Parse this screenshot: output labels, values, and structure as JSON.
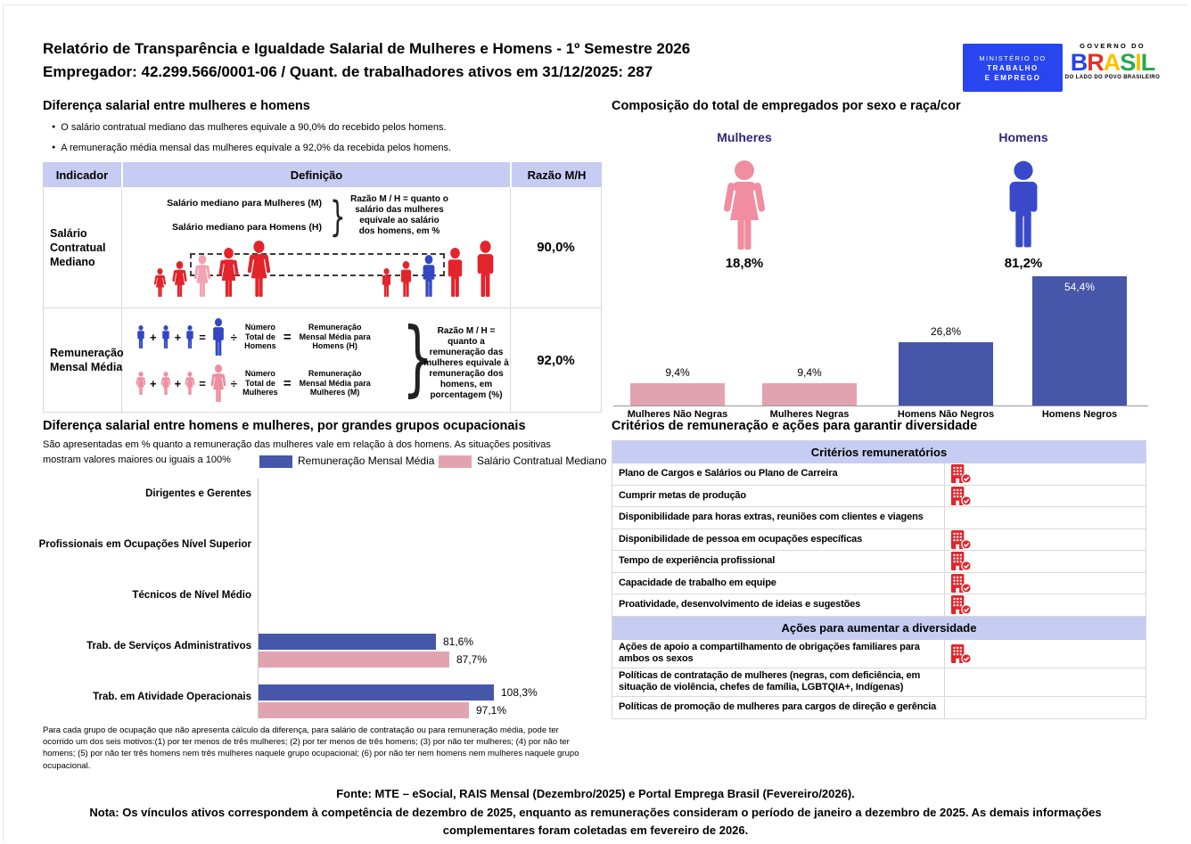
{
  "header": {
    "title_line1": "Relatório de Transparência e Igualdade Salarial de Mulheres e Homens - 1º Semestre 2026",
    "title_line2": "Empregador: 42.299.566/0001-06 / Quant. de trabalhadores ativos em 31/12/2025: 287",
    "ministry_logo": {
      "line1": "MINISTÉRIO DO",
      "line2": "TRABALHO",
      "line3": "E EMPREGO"
    },
    "gov_logo": {
      "top": "GOVERNO DO",
      "brasil_letters": [
        {
          "ch": "B",
          "color": "#2743EA"
        },
        {
          "ch": "R",
          "color": "#E53026"
        },
        {
          "ch": "A",
          "color": "#F8C300"
        },
        {
          "ch": "S",
          "color": "#2BA84E"
        },
        {
          "ch": "I",
          "color": "#F8C300"
        },
        {
          "ch": "L",
          "color": "#2BA84E"
        }
      ],
      "bottom": "DO LADO DO POVO BRASILEIRO"
    }
  },
  "salary_gap": {
    "title": "Diferença salarial entre mulheres e homens",
    "bullets": [
      "O salário contratual mediano das mulheres equivale a 90,0% do recebido pelos homens.",
      "A remuneração média mensal das mulheres equivale a 92,0% da recebida pelos homens."
    ],
    "table_headers": [
      "Indicador",
      "Definição",
      "Razão M/H"
    ],
    "row1": {
      "indicator": "Salário Contratual Mediano",
      "label_women": "Salário mediano para Mulheres (M)",
      "label_men": "Salário mediano para Homens (H)",
      "note": "Razão M / H = quanto o salário das mulheres equivale ao salário dos homens, em %",
      "women_icons": [
        "red",
        "red",
        "pink",
        "red",
        "red"
      ],
      "men_icons": [
        "red",
        "red",
        "blue",
        "red",
        "red"
      ],
      "ratio": "90,0%"
    },
    "row2": {
      "indicator": "Remuneração Mensal Média",
      "men_line": {
        "divisor": "Número Total de Homens",
        "result": "Remuneração Mensal Média para Homens (H)"
      },
      "women_line": {
        "divisor": "Número Total de Mulheres",
        "result": "Remuneração Mensal Média para Mulheres (M)"
      },
      "note": "Razão M / H = quanto a remuneração das mulheres equivale à remuneração dos homens, em porcentagem (%)",
      "ratio": "92,0%"
    }
  },
  "composition": {
    "title": "Composição do total de empregados por sexo e raça/cor",
    "women_label": "Mulheres",
    "women_pct": "18,8%",
    "men_label": "Homens",
    "men_pct": "81,2%"
  },
  "occupational": {
    "title": "Diferença salarial entre homens e mulheres, por grandes grupos ocupacionais",
    "subtitle": "São apresentadas em % quanto a remuneração das mulheres vale em relação à dos homens. As situações positivas mostram valores maiores ou iguais a 100%",
    "footnote": "Para cada grupo de ocupação que não apresenta cálculo da diferença, para salário de contratação ou para remuneração média, pode ter ocorrido um dos seis motivos:(1) por ter menos de três mulheres; (2) por ter menos de três homens; (3) por não ter mulheres; (4) por não ter homens; (5) por não ter três homens nem três mulheres naquele grupo ocupacional; (6) por não ter nem homens nem mulheres naquele grupo ocupacional."
  },
  "criteria": {
    "title": "Critérios de remuneração e ações para garantir diversidade",
    "sections": [
      {
        "header": "Critérios remuneratórios",
        "rows": [
          {
            "label": "Plano de Cargos e Salários ou Plano de Carreira",
            "checked": true
          },
          {
            "label": "Cumprir metas de produção",
            "checked": true
          },
          {
            "label": "Disponibilidade para horas extras, reuniões com clientes e viagens",
            "checked": false
          },
          {
            "label": "Disponibilidade de pessoa em ocupações específicas",
            "checked": true
          },
          {
            "label": "Tempo de experiência profissional",
            "checked": true
          },
          {
            "label": "Capacidade de trabalho em equipe",
            "checked": true
          },
          {
            "label": "Proatividade, desenvolvimento de ideias e sugestões",
            "checked": true
          }
        ]
      },
      {
        "header": "Ações para aumentar a diversidade",
        "rows": [
          {
            "label": "Ações de apoio a compartilhamento de obrigações familiares para ambos os sexos",
            "checked": true
          },
          {
            "label": "Políticas de contratação de mulheres (negras, com deficiência, em situação de violência, chefes de família, LGBTQIA+, Indígenas)",
            "checked": false
          },
          {
            "label": "Políticas de promoção de mulheres para cargos de direção e gerência",
            "checked": false
          }
        ]
      }
    ]
  },
  "footer": {
    "fonte": "Fonte: MTE – eSocial, RAIS Mensal (Dezembro/2025) e Portal Emprega Brasil (Fevereiro/2026).",
    "nota": "Nota: Os vínculos ativos correspondem à competência de dezembro de 2025, enquanto as remunerações consideram o período de janeiro a dezembro de 2025. As demais informações complementares foram coletadas em fevereiro de 2026."
  },
  "chart_data": [
    {
      "id": "composition",
      "type": "bar",
      "title": "Composição do total de empregados por sexo e raça/cor",
      "categories": [
        "Mulheres Não Negras",
        "Mulheres Negras",
        "Homens Não Negros",
        "Homens Negros"
      ],
      "values": [
        9.4,
        9.4,
        26.8,
        54.4
      ],
      "labels": [
        "9,4%",
        "9,4%",
        "26,8%",
        "54,4%"
      ],
      "colors": [
        "#E2A3B1",
        "#E2A3B1",
        "#4656A8",
        "#4656A8"
      ],
      "ylim": [
        0,
        60
      ],
      "legend_position": "none",
      "grid": false
    },
    {
      "id": "occupational",
      "type": "bar-horizontal",
      "title": "Diferença salarial entre homens e mulheres, por grandes grupos ocupacionais",
      "categories": [
        "Dirigentes e Gerentes",
        "Profissionais em Ocupações Nível Superior",
        "Técnicos de Nível Médio",
        "Trab. de Serviços Administrativos",
        "Trab. em Atividade Operacionais"
      ],
      "series": [
        {
          "name": "Remuneração Mensal Média",
          "color": "#4656A8",
          "values": [
            null,
            null,
            null,
            81.6,
            108.3
          ],
          "labels": [
            "",
            "",
            "",
            "81,6%",
            "108,3%"
          ]
        },
        {
          "name": "Salário Contratual Mediano",
          "color": "#E2A3B1",
          "values": [
            null,
            null,
            null,
            87.7,
            97.1
          ],
          "labels": [
            "",
            "",
            "",
            "87,7%",
            "97,1%"
          ]
        }
      ],
      "xlim": [
        0,
        120
      ],
      "grid": false,
      "legend_position": "top"
    }
  ]
}
